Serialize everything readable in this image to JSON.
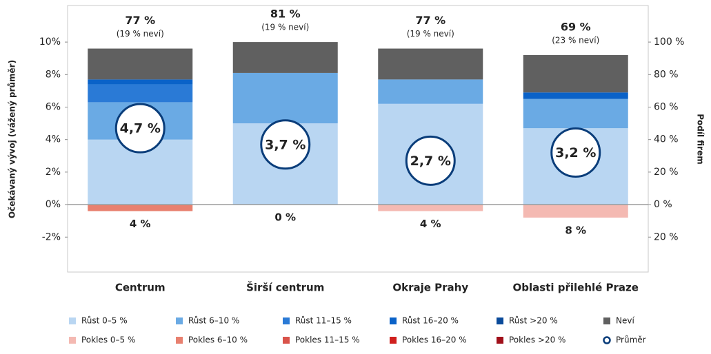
{
  "chart_data": {
    "type": "stacked_bar",
    "categories": [
      "Centrum",
      "Širší centrum",
      "Okraje Prahy",
      "Oblasti přilehlé Praze"
    ],
    "ylabel": "Očekávaný vývoj (vážený průměr)",
    "y2label": "Podíl firem",
    "ylim": [
      -4.15,
      12.25
    ],
    "yticks": [
      {
        "value": -2,
        "label": "-2%"
      },
      {
        "value": 0,
        "label": "0%"
      },
      {
        "value": 2,
        "label": "2%"
      },
      {
        "value": 4,
        "label": "4%"
      },
      {
        "value": 6,
        "label": "6%"
      },
      {
        "value": 8,
        "label": "8%"
      },
      {
        "value": 10,
        "label": "10%"
      }
    ],
    "y2lim": [
      -41.5,
      122.5
    ],
    "y2ticks": [
      {
        "value": -20,
        "label": "20 %"
      },
      {
        "value": 0,
        "label": "0 %"
      },
      {
        "value": 20,
        "label": "20 %"
      },
      {
        "value": 40,
        "label": "40 %"
      },
      {
        "value": 60,
        "label": "60 %"
      },
      {
        "value": 80,
        "label": "80 %"
      },
      {
        "value": 100,
        "label": "100 %"
      }
    ],
    "series": [
      {
        "name": "Růst 0–5 %",
        "color": "#b9d6f2",
        "axis": "y2",
        "values": [
          40,
          50,
          62,
          47
        ]
      },
      {
        "name": "Růst 6–10 %",
        "color": "#6aaae4",
        "axis": "y2",
        "values": [
          23,
          31,
          15,
          18
        ]
      },
      {
        "name": "Růst 11–15 %",
        "color": "#2a7ad6",
        "axis": "y2",
        "values": [
          11,
          0,
          0,
          0
        ]
      },
      {
        "name": "Růst 16–20 %",
        "color": "#0a62c8",
        "axis": "y2",
        "values": [
          3,
          0,
          0,
          4
        ]
      },
      {
        "name": "Růst >20 %",
        "color": "#0a4a9a",
        "axis": "y2",
        "values": [
          0,
          0,
          0,
          0
        ]
      },
      {
        "name": "Neví",
        "color": "#606060",
        "axis": "y2",
        "values": [
          19,
          19,
          19,
          23
        ]
      },
      {
        "name": "Pokles 0–5 %",
        "color": "#f4b9b2",
        "axis": "y2",
        "values": [
          0,
          0,
          -4,
          -8
        ]
      },
      {
        "name": "Pokles 6–10 %",
        "color": "#e8806f",
        "axis": "y2",
        "values": [
          -4,
          0,
          0,
          0
        ]
      },
      {
        "name": "Pokles 11–15 %",
        "color": "#d9534a",
        "axis": "y2",
        "values": [
          0,
          0,
          0,
          0
        ]
      },
      {
        "name": "Pokles 16–20 %",
        "color": "#d0201e",
        "axis": "y2",
        "values": [
          0,
          0,
          0,
          0
        ]
      },
      {
        "name": "Pokles >20 %",
        "color": "#a0101a",
        "axis": "y2",
        "values": [
          0,
          0,
          0,
          0
        ]
      },
      {
        "name": "Průměr",
        "color": "#0a3d7a",
        "axis": "y",
        "marker": "circle",
        "values": [
          4.7,
          3.7,
          2.7,
          3.2
        ],
        "value_labels": [
          "4,7 %",
          "3,7 %",
          "2,7 %",
          "3,2 %"
        ]
      }
    ],
    "growth_totals": {
      "values": [
        77,
        81,
        77,
        69
      ],
      "value_labels": [
        "77 %",
        "81 %",
        "77 %",
        "69 %"
      ],
      "color": "#1f5fb0"
    },
    "unknown_notes": [
      "(19 % neví)",
      "(19 % neví)",
      "(19 % neví)",
      "(23 % neví)"
    ],
    "decline_totals": {
      "values": [
        4,
        0,
        4,
        8
      ],
      "value_labels": [
        "4 %",
        "0 %",
        "4 %",
        "8 %"
      ],
      "color": "#c0202a"
    }
  }
}
